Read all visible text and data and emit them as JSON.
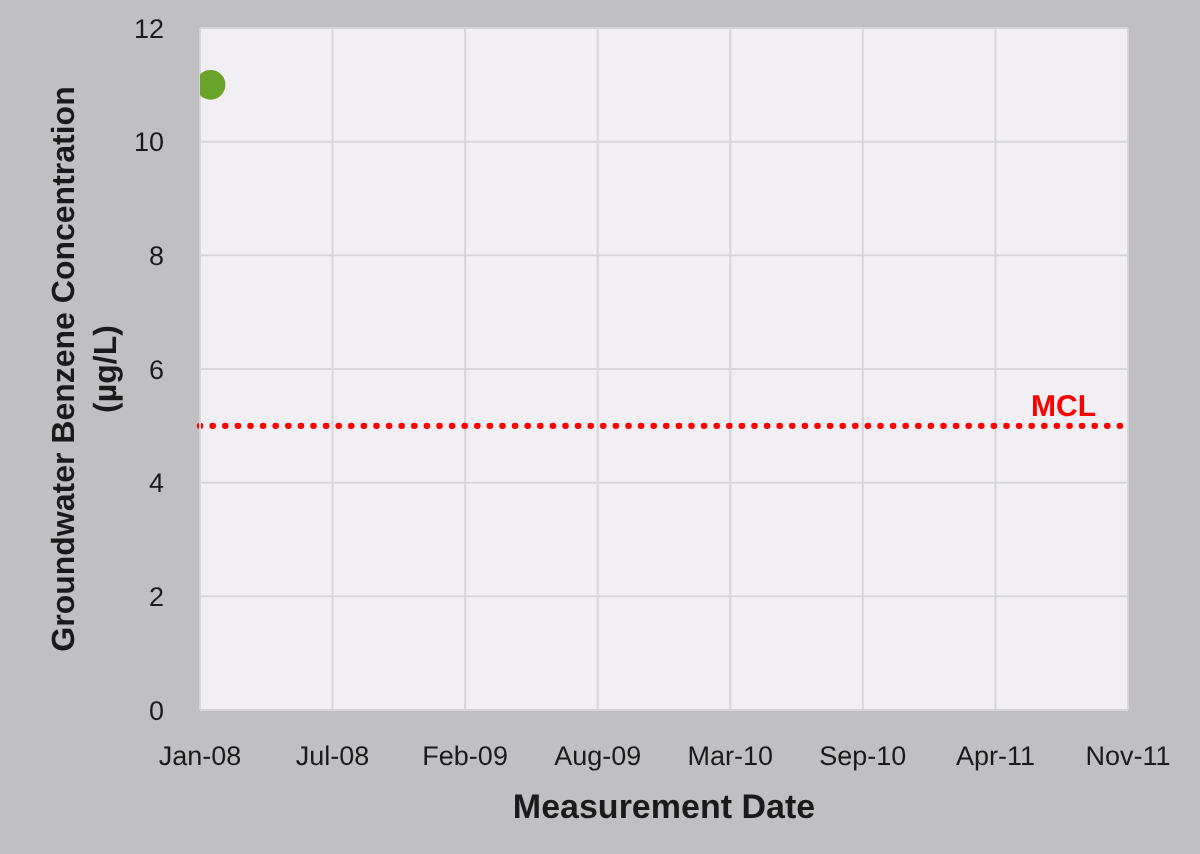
{
  "chart_data": {
    "type": "scatter",
    "xlabel": "Measurement Date",
    "ylabel": "Groundwater Benzene Concentration (µg/L)",
    "x": [
      "2008-01-17"
    ],
    "values": [
      11
    ],
    "color": "#6aa329",
    "xlim": [
      "2008-01-01",
      "2011-11-01"
    ],
    "xticks": [
      {
        "value": "2008-01-01",
        "label": "Jan-08"
      },
      {
        "value": "2008-07-19",
        "label": "Jul-08"
      },
      {
        "value": "2009-02-04",
        "label": "Feb-09"
      },
      {
        "value": "2009-08-23",
        "label": "Aug-09"
      },
      {
        "value": "2010-03-11",
        "label": "Mar-10"
      },
      {
        "value": "2010-09-27",
        "label": "Sep-10"
      },
      {
        "value": "2011-04-15",
        "label": "Apr-11"
      },
      {
        "value": "2011-11-01",
        "label": "Nov-11"
      }
    ],
    "ylim": [
      0,
      12
    ],
    "yticks": [
      0,
      2,
      4,
      6,
      8,
      10,
      12
    ],
    "grid": true,
    "marker": "circle",
    "ref_lines": [
      {
        "axis": "y",
        "value": 5,
        "label": "MCL",
        "color": "#ff0000",
        "line_style": "dotted"
      }
    ]
  }
}
